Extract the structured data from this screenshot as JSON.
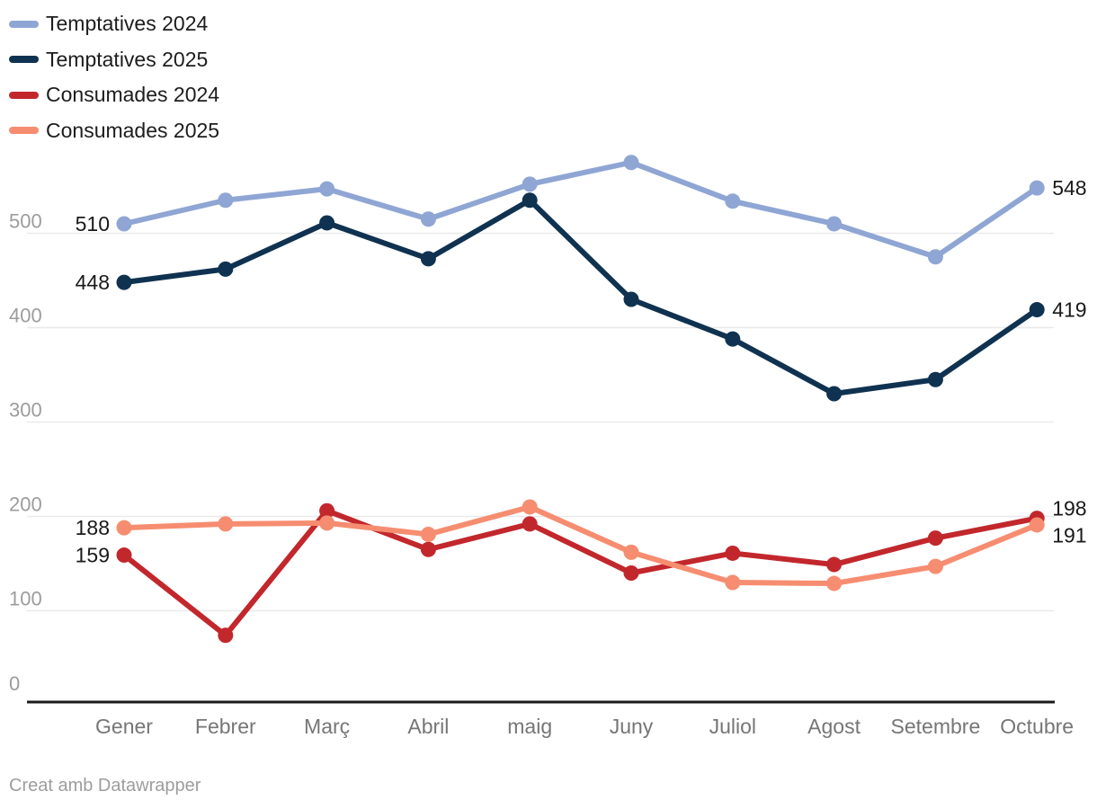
{
  "footer": {
    "credit": "Creat amb Datawrapper"
  },
  "chart_data": {
    "type": "line",
    "title": "",
    "xlabel": "",
    "ylabel": "",
    "x": [
      "Gener",
      "Febrer",
      "Març",
      "Abril",
      "maig",
      "Juny",
      "Juliol",
      "Agost",
      "Setembre",
      "Octubre"
    ],
    "series": [
      {
        "name": "Temptatives 2024",
        "color": "#8FA6D4",
        "values": [
          510,
          535,
          547,
          515,
          552,
          575,
          534,
          510,
          475,
          548
        ],
        "edge_labels": {
          "start": "510",
          "end": "548"
        }
      },
      {
        "name": "Temptatives 2025",
        "color": "#0F3250",
        "values": [
          448,
          462,
          511,
          473,
          535,
          430,
          388,
          330,
          345,
          419
        ],
        "edge_labels": {
          "start": "448",
          "end": "419"
        }
      },
      {
        "name": "Consumades 2024",
        "color": "#C2272C",
        "values": [
          159,
          74,
          206,
          165,
          192,
          140,
          161,
          149,
          177,
          198
        ],
        "edge_labels": {
          "start": "159",
          "end": "198"
        }
      },
      {
        "name": "Consumades 2025",
        "color": "#F68D70",
        "values": [
          188,
          192,
          193,
          181,
          210,
          162,
          130,
          129,
          147,
          191
        ],
        "edge_labels": {
          "start": "188",
          "end": "191"
        }
      }
    ],
    "yticks": [
      0,
      100,
      200,
      300,
      400,
      500
    ],
    "ylim": [
      0,
      590
    ],
    "grid": true,
    "legend_position": "top-left",
    "style": {
      "grid_color": "#e9e9e9",
      "axis_color": "#1a1a1a",
      "ytick_color": "#9c9c9c",
      "xtick_color": "#767676",
      "value_label_color": "#1a1a1a"
    }
  }
}
